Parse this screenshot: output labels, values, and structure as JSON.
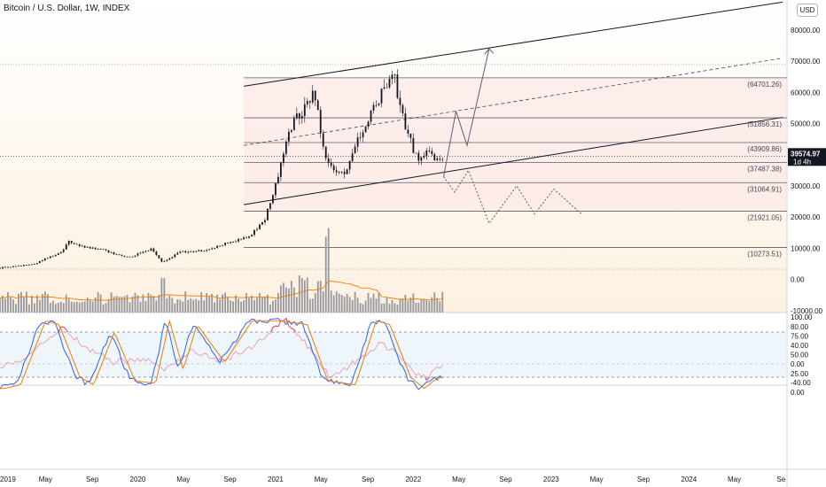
{
  "header": {
    "title": "Bitcoin / U.S. Dollar, 1W, INDEX",
    "currency": "USD"
  },
  "price_tag": {
    "value": "39574.97",
    "countdown": "1d 4h"
  },
  "colors": {
    "candle": "#131722",
    "volume": "#9598a1",
    "volume_ma": "#f57c00",
    "rsi": "#f23645",
    "stoch_k": "#2962ff",
    "stoch_d": "#f57c00",
    "channel": "#131722",
    "zone": "#fbe3e3",
    "stoch_band": "#e3eef9"
  },
  "chart_data": [
    {
      "type": "candlestick",
      "panel": "price",
      "title": "Bitcoin / U.S. Dollar, 1W, INDEX",
      "x_ticks": [
        "2019",
        "May",
        "Sep",
        "2020",
        "May",
        "Sep",
        "2021",
        "May",
        "Sep",
        "2022",
        "May",
        "Sep",
        "2023",
        "May",
        "Sep",
        "2024",
        "May",
        "Se"
      ],
      "y_ticks": [
        "80000.00",
        "70000.00",
        "60000.00",
        "50000.00",
        "40000.00",
        "30000.00",
        "20000.00",
        "10000.00",
        "0.00",
        "-10000.00"
      ],
      "ylim": [
        -10000,
        88000
      ],
      "last_price": 39574.97,
      "levels": [
        {
          "value": 64701.26,
          "label": "(64701.26)"
        },
        {
          "value": 51856.31,
          "label": "(51856.31)"
        },
        {
          "value": 43909.86,
          "label": "(43909.86)"
        },
        {
          "value": 37487.38,
          "label": "(37487.38)"
        },
        {
          "value": 31064.91,
          "label": "(31064.91)"
        },
        {
          "value": 21921.05,
          "label": "(21921.05)"
        },
        {
          "value": 10273.51,
          "label": "(10273.51)"
        }
      ],
      "price_series_anchors": [
        [
          2019.0,
          3700
        ],
        [
          2019.25,
          5000
        ],
        [
          2019.45,
          9000
        ],
        [
          2019.5,
          12500
        ],
        [
          2019.55,
          11000
        ],
        [
          2019.75,
          9500
        ],
        [
          2019.85,
          8000
        ],
        [
          2019.95,
          7200
        ],
        [
          2020.1,
          9800
        ],
        [
          2020.18,
          5500
        ],
        [
          2020.3,
          8800
        ],
        [
          2020.5,
          9300
        ],
        [
          2020.62,
          11500
        ],
        [
          2020.8,
          13500
        ],
        [
          2020.92,
          19000
        ],
        [
          2020.99,
          29000
        ],
        [
          2021.1,
          48000
        ],
        [
          2021.28,
          60000
        ],
        [
          2021.37,
          37000
        ],
        [
          2021.5,
          33000
        ],
        [
          2021.62,
          47000
        ],
        [
          2021.78,
          61000
        ],
        [
          2021.85,
          67000
        ],
        [
          2021.95,
          47000
        ],
        [
          2022.05,
          37000
        ],
        [
          2022.1,
          43000
        ],
        [
          2022.15,
          38000
        ],
        [
          2022.22,
          39575
        ]
      ],
      "projections": {
        "bullish": [
          [
            2022.22,
            33000
          ],
          [
            2022.31,
            54000
          ],
          [
            2022.39,
            43000
          ],
          [
            2022.55,
            74000
          ]
        ],
        "bearish": [
          [
            2022.22,
            33000
          ],
          [
            2022.3,
            28000
          ],
          [
            2022.4,
            35000
          ],
          [
            2022.55,
            18000
          ],
          [
            2022.75,
            30000
          ],
          [
            2022.88,
            21000
          ],
          [
            2023.02,
            29000
          ],
          [
            2023.22,
            21000
          ]
        ]
      },
      "channel": {
        "upper": [
          [
            2020.77,
            62000
          ],
          [
            2024.68,
            89000
          ]
        ],
        "lower": [
          [
            2020.77,
            24000
          ],
          [
            2024.68,
            52000
          ]
        ],
        "mid_dashed": [
          [
            2020.77,
            43000
          ],
          [
            2024.68,
            71000
          ]
        ]
      }
    },
    {
      "type": "bar",
      "panel": "volume",
      "series": [
        {
          "values": "relative volume histogram with moving average"
        }
      ]
    },
    {
      "type": "line",
      "panel": "rsi_oscillator",
      "y_ticks": [
        "80.00",
        "40.00",
        "0.00",
        "-40.00"
      ],
      "ylim": [
        -50,
        95
      ],
      "anchors": [
        [
          2019.0,
          -10
        ],
        [
          2019.2,
          15
        ],
        [
          2019.45,
          80
        ],
        [
          2019.6,
          40
        ],
        [
          2019.8,
          5
        ],
        [
          2020.1,
          10
        ],
        [
          2020.2,
          -15
        ],
        [
          2020.4,
          30
        ],
        [
          2020.6,
          5
        ],
        [
          2020.85,
          40
        ],
        [
          2021.0,
          80
        ],
        [
          2021.07,
          95
        ],
        [
          2021.2,
          50
        ],
        [
          2021.4,
          -30
        ],
        [
          2021.6,
          10
        ],
        [
          2021.75,
          40
        ],
        [
          2021.85,
          35
        ],
        [
          2022.0,
          -20
        ],
        [
          2022.1,
          -30
        ],
        [
          2022.2,
          -5
        ],
        [
          2022.23,
          0
        ]
      ]
    },
    {
      "type": "line",
      "panel": "stochastic",
      "y_ticks": [
        "100.00",
        "75.00",
        "50.00",
        "25.00",
        "0.00"
      ],
      "ylim": [
        0,
        100
      ],
      "bands": [
        80,
        20
      ],
      "anchors_k": [
        [
          2019.0,
          5
        ],
        [
          2019.12,
          10
        ],
        [
          2019.3,
          95
        ],
        [
          2019.4,
          90
        ],
        [
          2019.55,
          20
        ],
        [
          2019.65,
          10
        ],
        [
          2019.8,
          80
        ],
        [
          2019.95,
          15
        ],
        [
          2020.1,
          12
        ],
        [
          2020.2,
          95
        ],
        [
          2020.3,
          30
        ],
        [
          2020.4,
          90
        ],
        [
          2020.6,
          40
        ],
        [
          2020.8,
          95
        ],
        [
          2021.0,
          95
        ],
        [
          2021.2,
          90
        ],
        [
          2021.35,
          15
        ],
        [
          2021.55,
          10
        ],
        [
          2021.7,
          95
        ],
        [
          2021.8,
          90
        ],
        [
          2021.95,
          20
        ],
        [
          2022.05,
          5
        ],
        [
          2022.15,
          20
        ],
        [
          2022.23,
          18
        ]
      ]
    }
  ]
}
